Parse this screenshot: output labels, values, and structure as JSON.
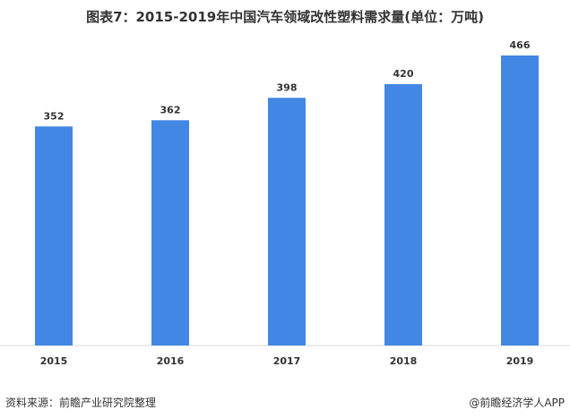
{
  "chart_data": {
    "type": "bar",
    "title": "图表7：2015-2019年中国汽车领域改性塑料需求量(单位：万吨)",
    "categories": [
      "2015",
      "2016",
      "2017",
      "2018",
      "2019"
    ],
    "series": [
      {
        "values": [
          352,
          362,
          398,
          420,
          466
        ]
      }
    ],
    "ylim": [
      0,
      466
    ],
    "grid": false,
    "bar_color": "#4287e3"
  },
  "footer": {
    "source": "资料来源：前瞻产业研究院整理",
    "brand": "@前瞻经济学人APP"
  }
}
